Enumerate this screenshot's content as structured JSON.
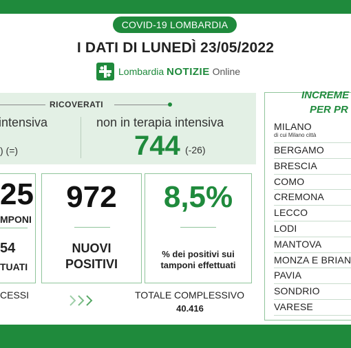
{
  "header": {
    "pill": "COVID-19 LOMBARDIA",
    "headline": "I DATI DI LUNEDÌ 23/05/2022",
    "logo": {
      "lombardia": "Lombardia",
      "notizie": "NOTIZIE",
      "online": "Online",
      "icon": "plus-leaf-icon"
    }
  },
  "ricoverati": {
    "title": "RICOVERATI",
    "terapia_intensiva": {
      "label": "intensiva",
      "delta": ") (=)"
    },
    "non_terapia_intensiva": {
      "label": "non in terapia intensiva",
      "value": "744",
      "delta": "(-26)"
    }
  },
  "stats": {
    "tamponi": {
      "value": "25",
      "label": "MPONI",
      "total": "54",
      "total_label": "TUATI"
    },
    "nuovi_positivi": {
      "value": "972",
      "label_line1": "NUOVI",
      "label_line2": "POSITIVI"
    },
    "percentuale": {
      "value": "8,5%",
      "label_line1": "% dei positivi sui",
      "label_line2": "tamponi effettuati"
    }
  },
  "footer_stats": {
    "decessi_label": "CESSI",
    "totale_label": "TOTALE COMPLESSIVO",
    "totale_value": "40.416"
  },
  "province_panel": {
    "title_line1": "INCREME",
    "title_line2": "PER PR",
    "first": {
      "name": "MILANO",
      "sub": "di cui Milano città"
    },
    "items": [
      "BERGAMO",
      "BRESCIA",
      "COMO",
      "CREMONA",
      "LECCO",
      "LODI",
      "MANTOVA",
      "MONZA E BRIAN",
      "PAVIA",
      "SONDRIO",
      "VARESE"
    ]
  },
  "colors": {
    "brand_green": "#1f8a3c",
    "band_light_green": "#e3f0e5",
    "box_border": "#8fc49a"
  }
}
